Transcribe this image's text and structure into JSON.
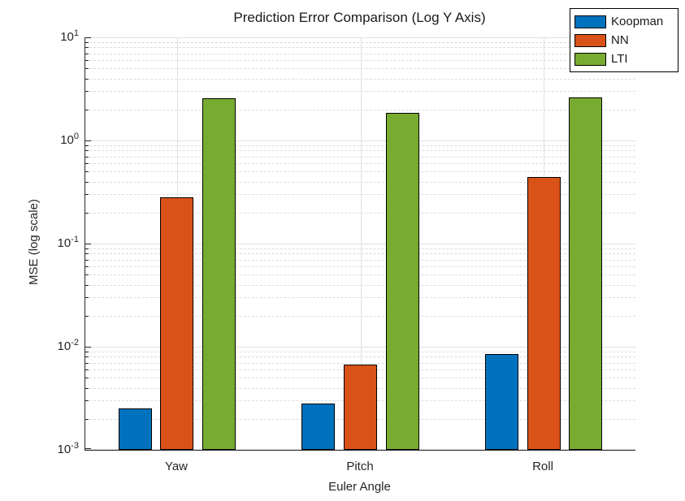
{
  "chart_data": {
    "type": "bar",
    "title": "Prediction Error Comparison (Log Y Axis)",
    "xlabel": "Euler Angle",
    "ylabel": "MSE (log scale)",
    "categories": [
      "Yaw",
      "Pitch",
      "Roll"
    ],
    "series": [
      {
        "name": "Koopman",
        "color": "#0072BD",
        "values": [
          0.0025,
          0.0028,
          0.0085
        ]
      },
      {
        "name": "NN",
        "color": "#D95319",
        "values": [
          0.28,
          0.0067,
          0.44
        ]
      },
      {
        "name": "LTI",
        "color": "#77AC30",
        "values": [
          2.55,
          1.84,
          2.6
        ]
      }
    ],
    "yscale": "log",
    "ylim": [
      0.001,
      10
    ],
    "y_tick_exponents": [
      -3,
      -2,
      -1,
      0,
      1
    ],
    "grid": true,
    "minor_grid": true,
    "legend_position": "top-right",
    "bar_edge_color": "#000000",
    "colors": {
      "major_grid": "#E0E0E0",
      "minor_grid": "#DCDCDC",
      "axis": "#262626",
      "background": "#FFFFFF"
    }
  }
}
